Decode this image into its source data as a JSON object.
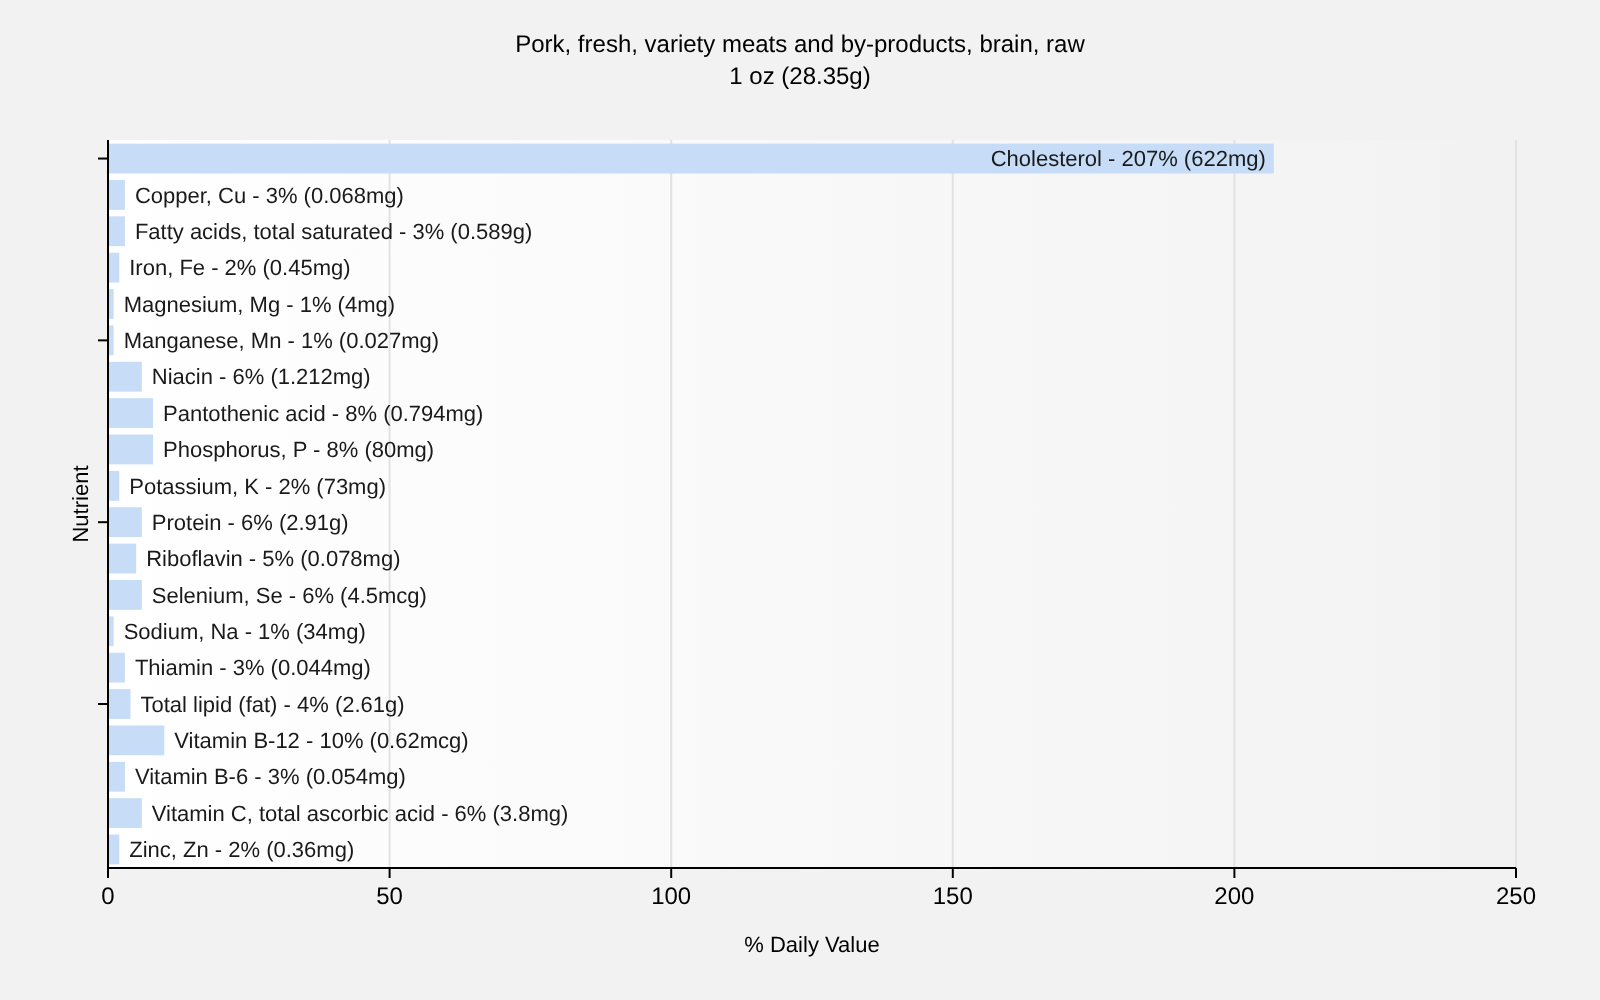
{
  "chart_data": {
    "type": "bar",
    "orientation": "horizontal",
    "title": "Pork, fresh, variety meats and by-products, brain, raw",
    "subtitle": "1 oz (28.35g)",
    "xlabel": "% Daily Value",
    "ylabel": "Nutrient",
    "categories": [
      "Cholesterol - 207% (622mg)",
      "Copper, Cu - 3% (0.068mg)",
      "Fatty acids, total saturated - 3% (0.589g)",
      "Iron, Fe - 2% (0.45mg)",
      "Magnesium, Mg - 1% (4mg)",
      "Manganese, Mn - 1% (0.027mg)",
      "Niacin - 6% (1.212mg)",
      "Pantothenic acid - 8% (0.794mg)",
      "Phosphorus, P - 8% (80mg)",
      "Potassium, K - 2% (73mg)",
      "Protein - 6% (2.91g)",
      "Riboflavin - 5% (0.078mg)",
      "Selenium, Se - 6% (4.5mcg)",
      "Sodium, Na - 1% (34mg)",
      "Thiamin - 3% (0.044mg)",
      "Total lipid (fat) - 4% (2.61g)",
      "Vitamin B-12 - 10% (0.62mcg)",
      "Vitamin B-6 - 3% (0.054mg)",
      "Vitamin C, total ascorbic acid - 6% (3.8mg)",
      "Zinc, Zn - 2% (0.36mg)"
    ],
    "values": [
      207,
      3,
      3,
      2,
      1,
      1,
      6,
      8,
      8,
      2,
      6,
      5,
      6,
      1,
      3,
      4,
      10,
      3,
      6,
      2
    ],
    "color": "#c6dcf7",
    "xlim": [
      0,
      250
    ],
    "xticks": [
      0,
      50,
      100,
      150,
      200,
      250
    ],
    "grid": "x"
  }
}
